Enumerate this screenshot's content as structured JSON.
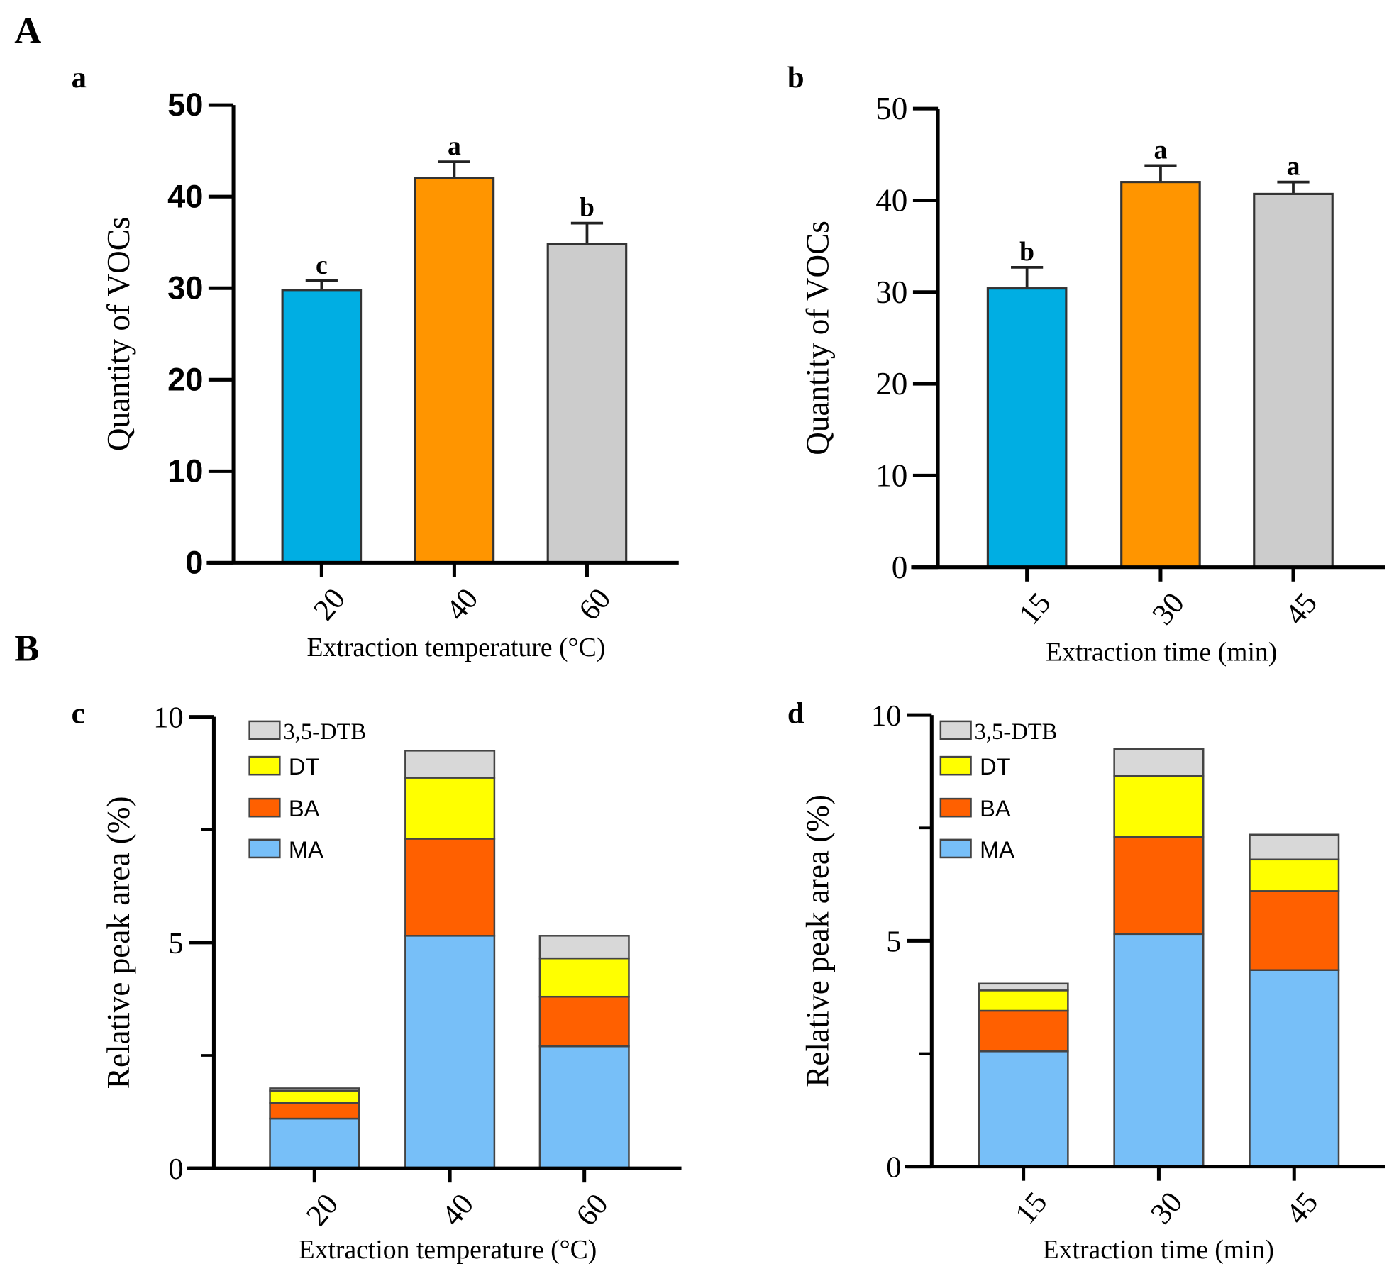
{
  "panel_labels": {
    "A": "A",
    "B": "B"
  },
  "chart_data": [
    {
      "id": "a",
      "panel": "a",
      "type": "bar",
      "categories": [
        "20",
        "40",
        "60"
      ],
      "values": [
        29.8,
        42.0,
        34.8
      ],
      "errors": [
        1.0,
        1.8,
        2.3
      ],
      "significance": [
        "c",
        "a",
        "b"
      ],
      "colors": [
        "#00aee3",
        "#ff9500",
        "#cccccc"
      ],
      "xlabel": "Extraction temperature (°C)",
      "ylabel": "Quantity of VOCs",
      "ylim": [
        0,
        50
      ],
      "yticks": [
        "0",
        "10",
        "20",
        "30",
        "40",
        "50"
      ]
    },
    {
      "id": "b",
      "panel": "b",
      "type": "bar",
      "categories": [
        "15",
        "30",
        "45"
      ],
      "values": [
        30.4,
        42.0,
        40.7
      ],
      "errors": [
        2.3,
        1.8,
        1.3
      ],
      "significance": [
        "b",
        "a",
        "a"
      ],
      "colors": [
        "#00aee3",
        "#ff9500",
        "#cccccc"
      ],
      "xlabel": "Extraction time (min)",
      "ylabel": "Quantity of VOCs",
      "ylim": [
        0,
        50
      ],
      "yticks": [
        "0",
        "10",
        "20",
        "30",
        "40",
        "50"
      ]
    },
    {
      "id": "c",
      "panel": "c",
      "type": "bar",
      "stacked": true,
      "categories": [
        "20",
        "40",
        "60"
      ],
      "series": [
        {
          "name": "MA",
          "color": "#77bff8",
          "values": [
            1.1,
            5.15,
            2.7
          ]
        },
        {
          "name": "BA",
          "color": "#ff6000",
          "values": [
            0.35,
            2.15,
            1.1
          ]
        },
        {
          "name": "DT",
          "color": "#ffff00",
          "values": [
            0.27,
            1.35,
            0.85
          ]
        },
        {
          "name": "3,5-DTB",
          "color": "#d8d8d8",
          "values": [
            0.05,
            0.6,
            0.5
          ]
        }
      ],
      "xlabel": "Extraction temperature (°C)",
      "ylabel": "Relative peak area (%)",
      "ylim": [
        0,
        10
      ],
      "yticks": [
        "0",
        "5",
        "10"
      ],
      "legend": "top-left"
    },
    {
      "id": "d",
      "panel": "d",
      "type": "bar",
      "stacked": true,
      "categories": [
        "15",
        "30",
        "45"
      ],
      "series": [
        {
          "name": "MA",
          "color": "#77bff8",
          "values": [
            2.55,
            5.15,
            4.35
          ]
        },
        {
          "name": "BA",
          "color": "#ff6000",
          "values": [
            0.9,
            2.15,
            1.75
          ]
        },
        {
          "name": "DT",
          "color": "#ffff00",
          "values": [
            0.45,
            1.35,
            0.7
          ]
        },
        {
          "name": "3,5-DTB",
          "color": "#d8d8d8",
          "values": [
            0.15,
            0.6,
            0.55
          ]
        }
      ],
      "xlabel": "Extraction time (min)",
      "ylabel": "Relative peak area (%)",
      "ylim": [
        0,
        10
      ],
      "yticks": [
        "0",
        "5",
        "10"
      ],
      "legend": "top-left"
    }
  ]
}
